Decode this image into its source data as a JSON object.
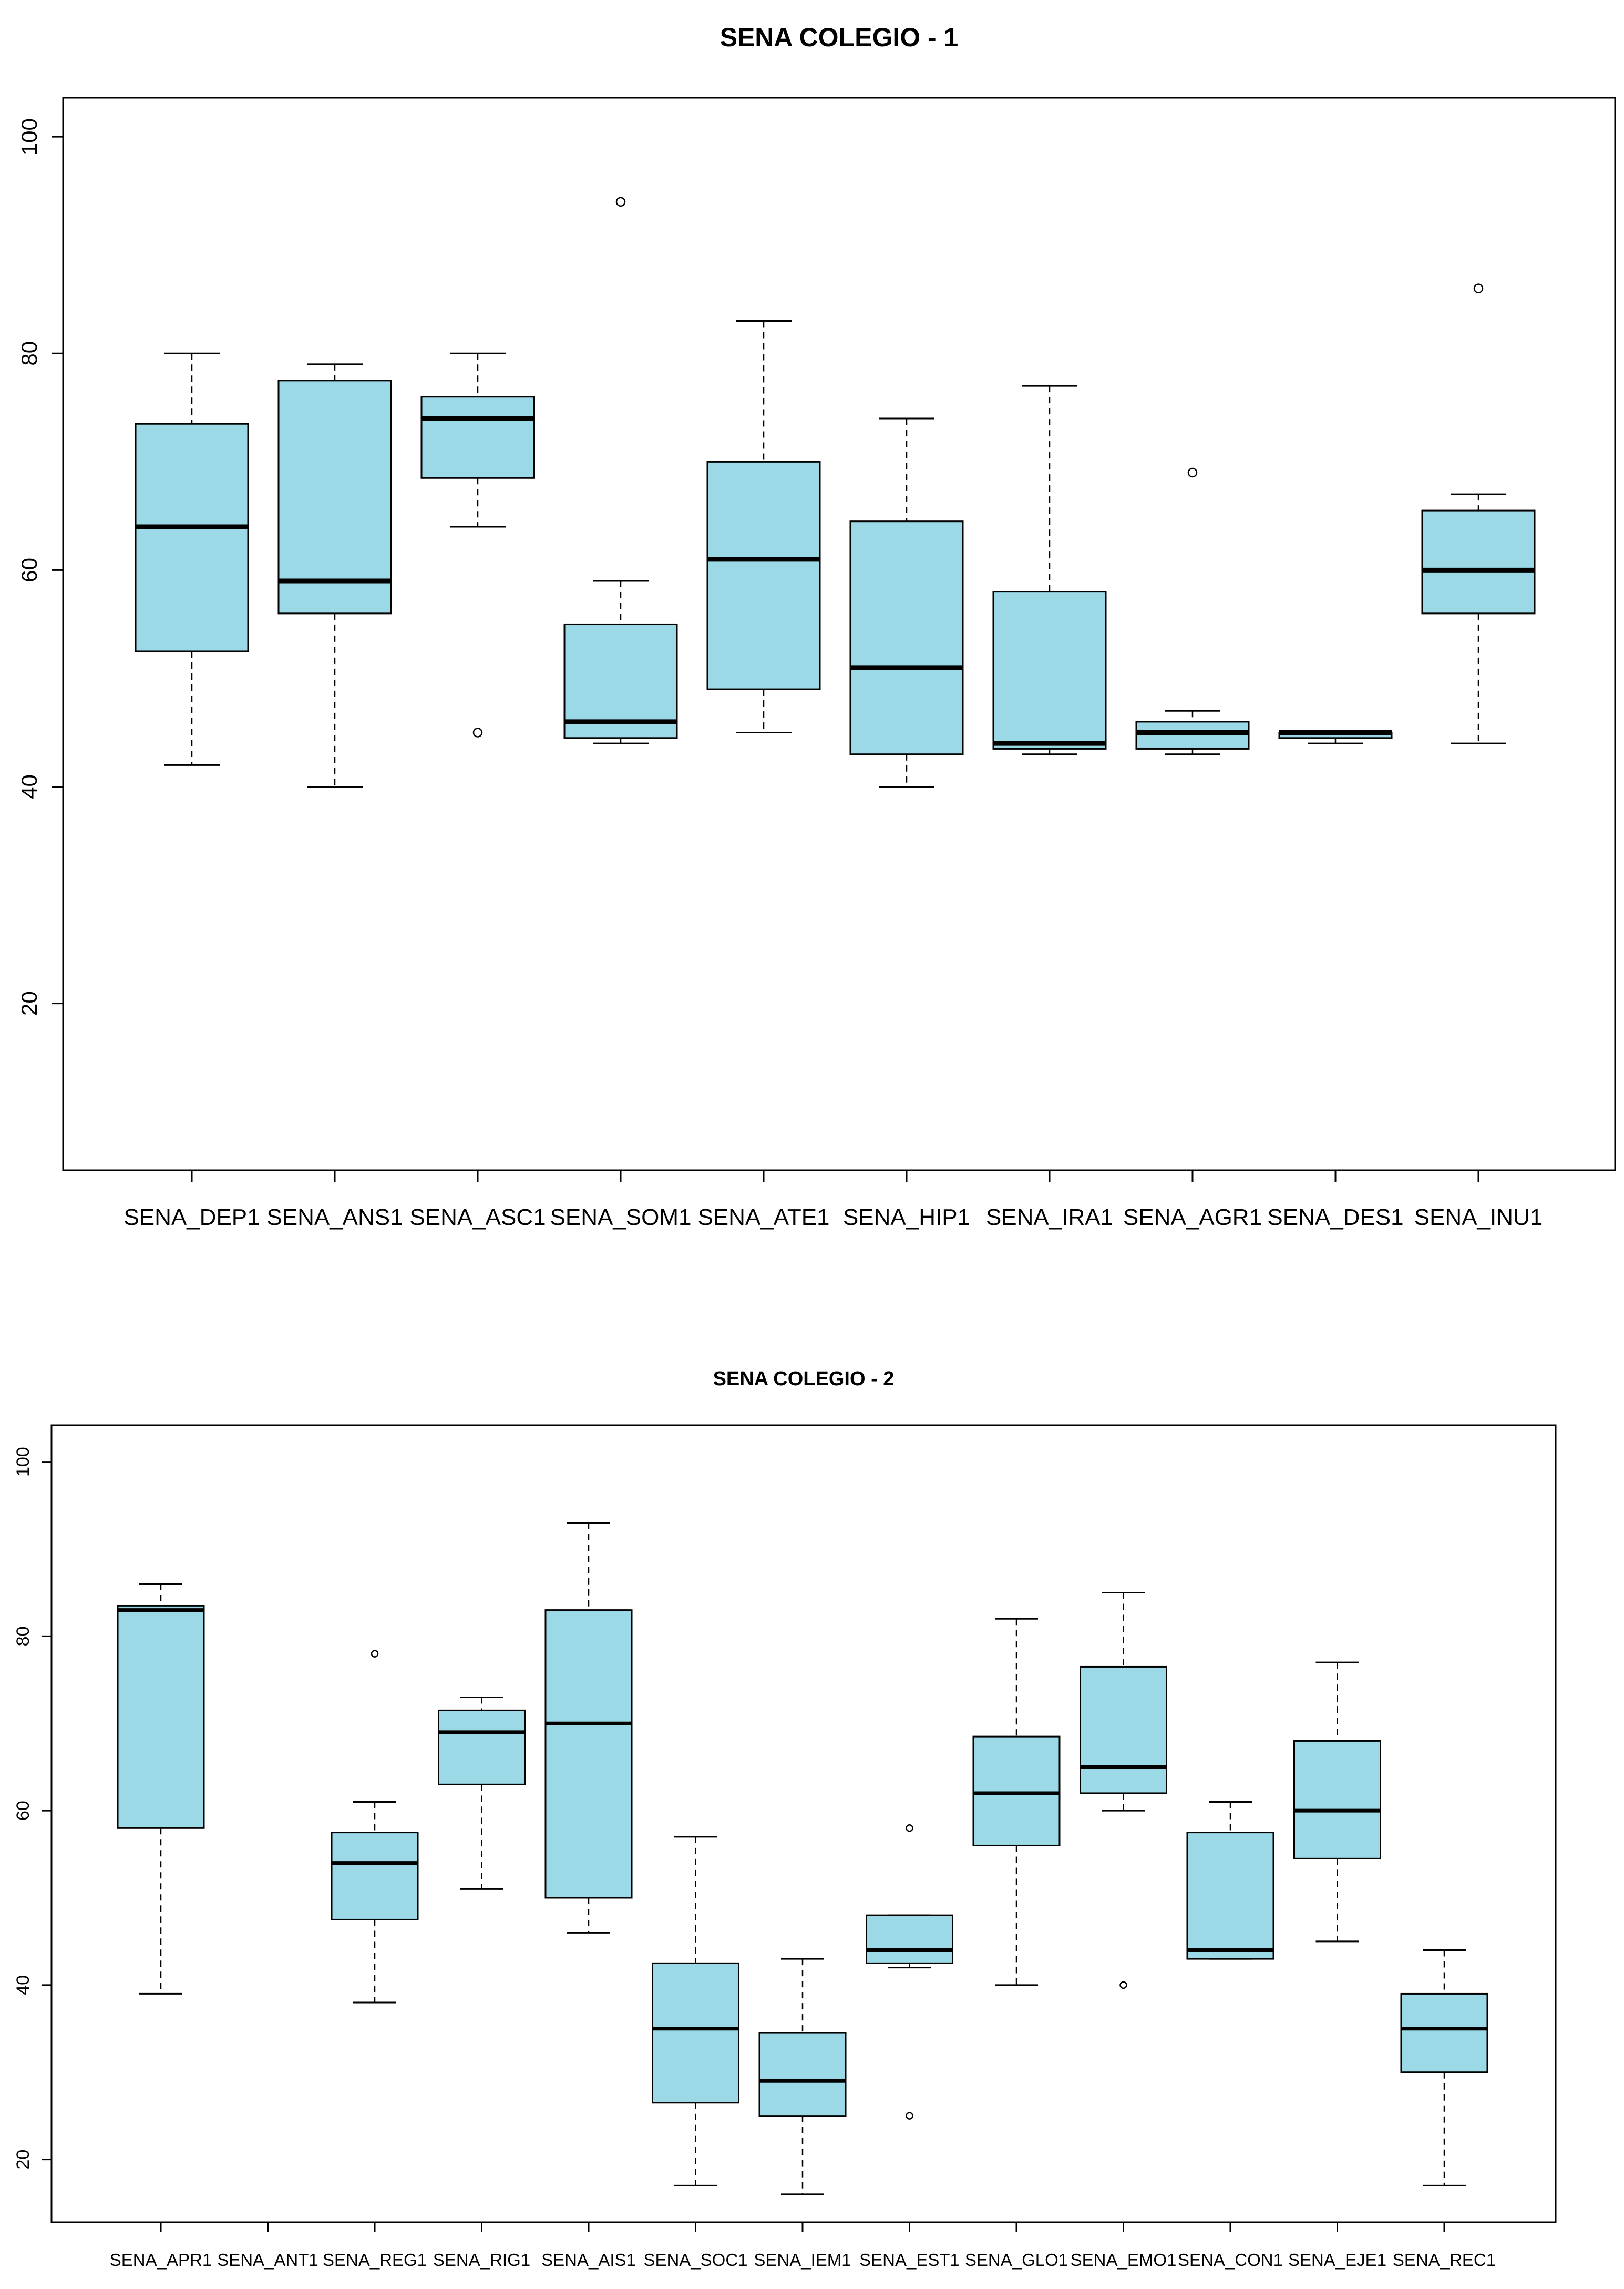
{
  "colors": {
    "box_fill": "#9ad9e5",
    "stroke": "#000000",
    "background": "#ffffff"
  },
  "chart_data": [
    {
      "type": "boxplot",
      "title": "SENA COLEGIO - 1",
      "xlabel": "",
      "ylabel": "",
      "ylim": [
        4.6,
        103.6
      ],
      "yticks": [
        "20",
        "40",
        "60",
        "80",
        "100"
      ],
      "categories": [
        "SENA_DEP1",
        "SENA_ANS1",
        "SENA_ASC1",
        "SENA_SOM1",
        "SENA_ATE1",
        "SENA_HIP1",
        "SENA_IRA1",
        "SENA_AGR1",
        "SENA_DES1",
        "SENA_INU1"
      ],
      "boxes": [
        {
          "min": 42,
          "q1": 52.5,
          "median": 64,
          "q3": 73.5,
          "max": 80,
          "outliers": []
        },
        {
          "min": 40,
          "q1": 56,
          "median": 59,
          "q3": 77.5,
          "max": 79,
          "outliers": []
        },
        {
          "min": 64,
          "q1": 68.5,
          "median": 74,
          "q3": 76,
          "max": 80,
          "outliers": [
            45
          ]
        },
        {
          "min": 44,
          "q1": 44.5,
          "median": 46,
          "q3": 55,
          "max": 59,
          "outliers": [
            94
          ]
        },
        {
          "min": 45,
          "q1": 49,
          "median": 61,
          "q3": 70,
          "max": 83,
          "outliers": []
        },
        {
          "min": 40,
          "q1": 43,
          "median": 51,
          "q3": 64.5,
          "max": 74,
          "outliers": []
        },
        {
          "min": 43,
          "q1": 43.5,
          "median": 44,
          "q3": 58,
          "max": 77,
          "outliers": []
        },
        {
          "min": 43,
          "q1": 43.5,
          "median": 45,
          "q3": 46,
          "max": 47,
          "outliers": [
            69
          ]
        },
        {
          "min": 44,
          "q1": 44.5,
          "median": 45,
          "q3": 45,
          "max": 45,
          "outliers": []
        },
        {
          "min": 44,
          "q1": 56,
          "median": 60,
          "q3": 65.5,
          "max": 67,
          "outliers": [
            86
          ]
        }
      ]
    },
    {
      "type": "boxplot",
      "title": "SENA COLEGIO - 2",
      "xlabel": "",
      "ylabel": "",
      "ylim": [
        12.8,
        104.2
      ],
      "yticks": [
        "20",
        "40",
        "60",
        "80",
        "100"
      ],
      "categories": [
        "SENA_APR1",
        "SENA_ANT1",
        "SENA_REG1",
        "SENA_RIG1",
        "SENA_AIS1",
        "SENA_SOC1",
        "SENA_IEM1",
        "SENA_EST1",
        "SENA_GLO1",
        "SENA_EMO1",
        "SENA_CON1",
        "SENA_EJE1",
        "SENA_REC1"
      ],
      "boxes": [
        {
          "min": 39,
          "q1": 58,
          "median": 83,
          "q3": 83.5,
          "max": 86,
          "outliers": []
        },
        null,
        {
          "min": 38,
          "q1": 47.5,
          "median": 54,
          "q3": 57.5,
          "max": 61,
          "outliers": [
            78
          ]
        },
        {
          "min": 51,
          "q1": 63,
          "median": 69,
          "q3": 71.5,
          "max": 73,
          "outliers": []
        },
        {
          "min": 46,
          "q1": 50,
          "median": 70,
          "q3": 83,
          "max": 93,
          "outliers": []
        },
        {
          "min": 17,
          "q1": 26.5,
          "median": 35,
          "q3": 42.5,
          "max": 57,
          "outliers": []
        },
        {
          "min": 16,
          "q1": 25,
          "median": 29,
          "q3": 34.5,
          "max": 43,
          "outliers": []
        },
        {
          "min": 42,
          "q1": 42.5,
          "median": 44,
          "q3": 48,
          "max": 48,
          "outliers": [
            58,
            25
          ]
        },
        {
          "min": 40,
          "q1": 56,
          "median": 62,
          "q3": 68.5,
          "max": 82,
          "outliers": []
        },
        {
          "min": 60,
          "q1": 62,
          "median": 65,
          "q3": 76.5,
          "max": 85,
          "outliers": [
            40
          ]
        },
        {
          "min": 43,
          "q1": 43,
          "median": 44,
          "q3": 57.5,
          "max": 61,
          "outliers": []
        },
        {
          "min": 45,
          "q1": 54.5,
          "median": 60,
          "q3": 68,
          "max": 77,
          "outliers": []
        },
        {
          "min": 17,
          "q1": 30,
          "median": 35,
          "q3": 39,
          "max": 44,
          "outliers": []
        }
      ]
    }
  ]
}
